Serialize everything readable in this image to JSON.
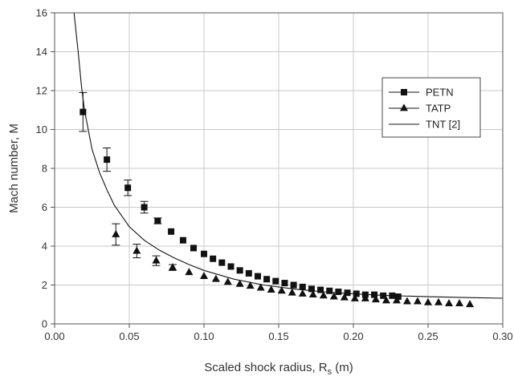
{
  "chart_data": {
    "type": "scatter",
    "xlabel": "Scaled shock radius, R",
    "xlabel_sub": "s",
    "xlabel_unit": " (m)",
    "ylabel": "Mach number, M",
    "xlim": [
      0,
      0.3
    ],
    "ylim": [
      0,
      16
    ],
    "x_ticks": [
      0.0,
      0.05,
      0.1,
      0.15,
      0.2,
      0.25,
      0.3
    ],
    "x_tick_labels": [
      "0.00",
      "0.05",
      "0.10",
      "0.15",
      "0.20",
      "0.25",
      "0.30"
    ],
    "y_ticks": [
      0,
      2,
      4,
      6,
      8,
      10,
      12,
      14,
      16
    ],
    "y_tick_labels": [
      "0",
      "2",
      "4",
      "6",
      "8",
      "10",
      "12",
      "14",
      "16"
    ],
    "grid": true,
    "legend_position": "right",
    "series": [
      {
        "name": "PETN",
        "kind": "markers",
        "marker": "square",
        "x": [
          0.019,
          0.035,
          0.049,
          0.06,
          0.069,
          0.078,
          0.086,
          0.093,
          0.1,
          0.106,
          0.112,
          0.118,
          0.124,
          0.13,
          0.136,
          0.142,
          0.148,
          0.154,
          0.16,
          0.166,
          0.172,
          0.178,
          0.184,
          0.19,
          0.196,
          0.202,
          0.208,
          0.214,
          0.22,
          0.226,
          0.23
        ],
        "y": [
          10.9,
          8.45,
          7.0,
          6.0,
          5.3,
          4.75,
          4.3,
          3.9,
          3.6,
          3.35,
          3.15,
          2.95,
          2.75,
          2.6,
          2.45,
          2.3,
          2.2,
          2.1,
          2.0,
          1.9,
          1.8,
          1.75,
          1.7,
          1.65,
          1.6,
          1.55,
          1.5,
          1.5,
          1.45,
          1.45,
          1.4
        ],
        "y_err": [
          1.0,
          0.6,
          0.4,
          0.3,
          0.15,
          0.1,
          0.1,
          0.1,
          0.1,
          0.1,
          0.1,
          0.05,
          0.05,
          0.05,
          0.05,
          0.05,
          0.05,
          0.05,
          0.05,
          0.05,
          0.05,
          0.05,
          0.05,
          0.05,
          0.05,
          0.05,
          0.05,
          0.05,
          0.05,
          0.05,
          0.05
        ]
      },
      {
        "name": "TATP",
        "kind": "markers",
        "marker": "triangle",
        "x": [
          0.041,
          0.055,
          0.068,
          0.079,
          0.09,
          0.1,
          0.108,
          0.116,
          0.124,
          0.131,
          0.138,
          0.145,
          0.152,
          0.159,
          0.166,
          0.173,
          0.18,
          0.187,
          0.194,
          0.201,
          0.208,
          0.215,
          0.222,
          0.229,
          0.236,
          0.243,
          0.25,
          0.257,
          0.264,
          0.271,
          0.278
        ],
        "y": [
          4.6,
          3.75,
          3.25,
          2.9,
          2.65,
          2.45,
          2.3,
          2.15,
          2.05,
          1.95,
          1.85,
          1.75,
          1.7,
          1.6,
          1.55,
          1.5,
          1.45,
          1.4,
          1.35,
          1.3,
          1.3,
          1.25,
          1.2,
          1.2,
          1.15,
          1.15,
          1.1,
          1.1,
          1.05,
          1.05,
          1.0
        ],
        "y_err": [
          0.55,
          0.35,
          0.25,
          0.15,
          0.1,
          0.1,
          0.05,
          0.05,
          0.05,
          0.05,
          0.05,
          0.05,
          0.05,
          0.05,
          0.05,
          0.05,
          0.05,
          0.05,
          0.05,
          0.05,
          0.05,
          0.05,
          0.05,
          0.05,
          0.05,
          0.05,
          0.05,
          0.05,
          0.05,
          0.05,
          0.05
        ]
      },
      {
        "name": "TNT [2]",
        "kind": "line",
        "x": [
          0.013,
          0.016,
          0.018,
          0.02,
          0.025,
          0.03,
          0.035,
          0.04,
          0.05,
          0.06,
          0.07,
          0.08,
          0.09,
          0.1,
          0.12,
          0.14,
          0.16,
          0.18,
          0.2,
          0.22,
          0.25,
          0.28,
          0.3
        ],
        "y": [
          16.0,
          13.8,
          12.2,
          11.0,
          9.0,
          7.8,
          6.9,
          6.1,
          5.0,
          4.3,
          3.8,
          3.4,
          3.05,
          2.75,
          2.3,
          2.0,
          1.8,
          1.65,
          1.55,
          1.47,
          1.4,
          1.35,
          1.32
        ]
      }
    ]
  }
}
